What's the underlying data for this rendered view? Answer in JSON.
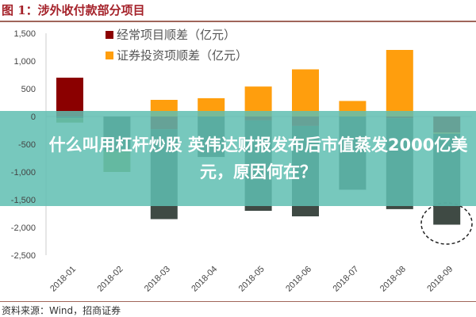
{
  "title": "图 1：涉外收付款部分项目",
  "source": "资料来源：Wind，招商证券",
  "banner": {
    "text": "什么叫用杠杆炒股 英伟达财报发布后市值蒸发2000亿美元，原因何在？"
  },
  "chart_data": {
    "type": "bar",
    "stacked": true,
    "categories": [
      "2018-01",
      "2018-02",
      "2018-03",
      "2018-04",
      "2018-05",
      "2018-06",
      "2018-07",
      "2018-08",
      "2018-09"
    ],
    "yticks": [
      "1,500",
      "1,000",
      "500",
      "0",
      "-500",
      "-1,000",
      "-1,500",
      "-2,000",
      "-2,500"
    ],
    "ylim": [
      -2500,
      1500
    ],
    "legend_position": "top",
    "series": [
      {
        "name": "经常项目顺差（亿元）",
        "color": "#8b0000",
        "values": [
          700,
          0,
          -230,
          0,
          -70,
          -170,
          0,
          -30,
          -290
        ]
      },
      {
        "name": "证券投资项顺差（亿元）",
        "color": "#ff9e0d",
        "values": [
          0,
          0,
          300,
          330,
          540,
          850,
          280,
          1200,
          -20
        ]
      },
      {
        "color": "#3f4a44",
        "values": [
          -30,
          -620,
          -1620,
          -730,
          -1630,
          -1630,
          -1320,
          -1640,
          -1640
        ]
      },
      {
        "color": "#7f9a48",
        "values": [
          -80,
          -380,
          0,
          0,
          0,
          0,
          0,
          0,
          0
        ]
      }
    ]
  }
}
